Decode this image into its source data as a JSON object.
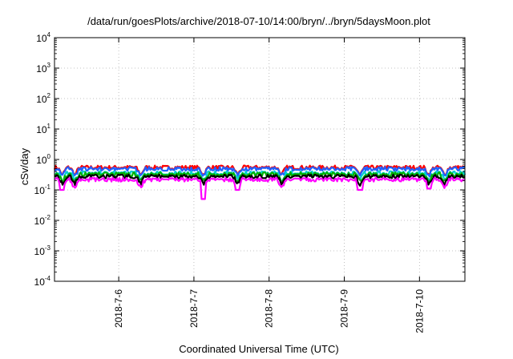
{
  "chart_data": {
    "type": "area",
    "title": "/data/run/goesPlots/archive/2018-07-10/14:00/bryn/../bryn/5daysMoon.plot",
    "xlabel": "Coordinated Universal Time (UTC)",
    "ylabel": "cSv/day",
    "y_scale": "log",
    "ylim": [
      0.0001,
      10000
    ],
    "xlim": [
      "2018-07-05 03:30",
      "2018-07-10 14:30"
    ],
    "grid": true,
    "legend": "none",
    "y_ticks": [
      {
        "base": "10",
        "exp": "4",
        "value": 10000
      },
      {
        "base": "10",
        "exp": "3",
        "value": 1000
      },
      {
        "base": "10",
        "exp": "2",
        "value": 100
      },
      {
        "base": "10",
        "exp": "1",
        "value": 10
      },
      {
        "base": "10",
        "exp": "0",
        "value": 1
      },
      {
        "base": "10",
        "exp": "-1",
        "value": 0.1
      },
      {
        "base": "10",
        "exp": "-2",
        "value": 0.01
      },
      {
        "base": "10",
        "exp": "-3",
        "value": 0.001
      },
      {
        "base": "10",
        "exp": "-4",
        "value": 0.0001
      }
    ],
    "x_ticks": [
      {
        "label": "2018-7-6",
        "value": "2018-07-06 00:00"
      },
      {
        "label": "2018-7-7",
        "value": "2018-07-07 00:00"
      },
      {
        "label": "2018-7-8",
        "value": "2018-07-08 00:00"
      },
      {
        "label": "2018-7-9",
        "value": "2018-07-09 00:00"
      },
      {
        "label": "2018-7-10",
        "value": "2018-07-10 00:00"
      }
    ],
    "series": [
      {
        "color": "#ff0000",
        "values_approx": [
          0.45,
          0.62
        ],
        "typical": 0.55
      },
      {
        "color": "#2060ff",
        "values_approx": [
          0.4,
          0.58
        ],
        "typical": 0.5
      },
      {
        "color": "#00cfcf",
        "values_approx": [
          0.3,
          0.42
        ],
        "typical": 0.36
      },
      {
        "color": "#00b000",
        "values_approx": [
          0.28,
          0.38
        ],
        "typical": 0.33
      },
      {
        "color": "#000000",
        "values_approx": [
          0.24,
          0.33
        ],
        "typical": 0.28
      },
      {
        "color": "#ff00ff",
        "values_approx": [
          0.05,
          0.28
        ],
        "typical": 0.22
      }
    ],
    "dips": [
      {
        "at": "2018-07-05 06:00",
        "min": 0.1
      },
      {
        "at": "2018-07-05 10:00",
        "min": 0.13
      },
      {
        "at": "2018-07-06 07:00",
        "min": 0.14
      },
      {
        "at": "2018-07-07 03:00",
        "min": 0.05
      },
      {
        "at": "2018-07-07 14:00",
        "min": 0.1
      },
      {
        "at": "2018-07-08 04:00",
        "min": 0.14
      },
      {
        "at": "2018-07-09 05:00",
        "min": 0.1
      },
      {
        "at": "2018-07-10 03:00",
        "min": 0.11
      },
      {
        "at": "2018-07-10 08:00",
        "min": 0.14
      }
    ]
  }
}
